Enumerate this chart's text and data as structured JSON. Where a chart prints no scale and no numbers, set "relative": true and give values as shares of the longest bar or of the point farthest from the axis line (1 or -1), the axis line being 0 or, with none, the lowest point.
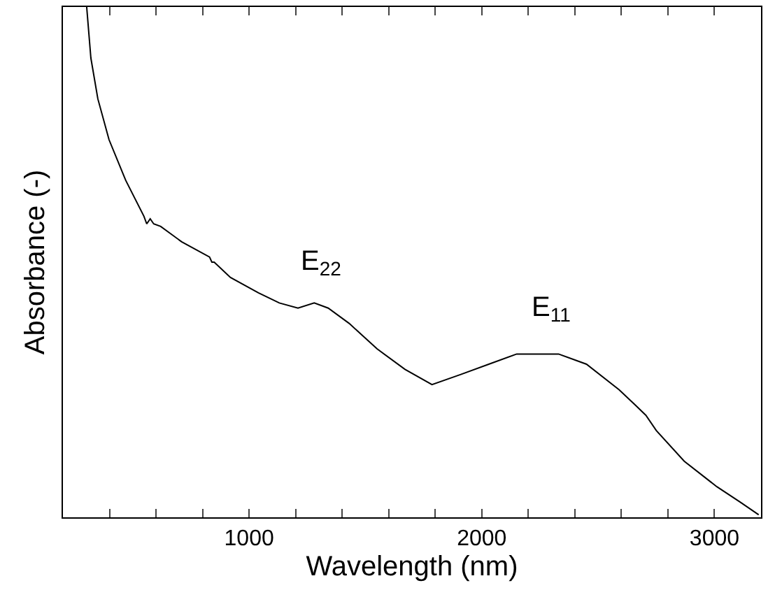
{
  "chart_data": {
    "type": "line",
    "xlabel": "Wavelength (nm)",
    "ylabel": "Absorbance (-)",
    "relative": true,
    "xlim": [
      200,
      3200
    ],
    "xticks": [
      {
        "value": 400,
        "label": null
      },
      {
        "value": 600,
        "label": null
      },
      {
        "value": 800,
        "label": null
      },
      1000,
      {
        "value": 1200,
        "label": null
      },
      {
        "value": 1400,
        "label": null
      },
      {
        "value": 1600,
        "label": null
      },
      {
        "value": 1800,
        "label": null
      },
      2000,
      {
        "value": 2200,
        "label": null
      },
      {
        "value": 2400,
        "label": null
      },
      {
        "value": 2600,
        "label": null
      },
      {
        "value": 2800,
        "label": null
      },
      3000
    ],
    "series": [
      {
        "color": "#000000",
        "x": [
          302,
          320,
          350,
          398,
          470,
          548,
          560,
          575,
          590,
          620,
          710,
          830,
          840,
          850,
          920,
          1040,
          1130,
          1210,
          1280,
          1340,
          1430,
          1550,
          1670,
          1786,
          1910,
          2030,
          2150,
          2270,
          2330,
          2450,
          2590,
          2660,
          2705,
          2750,
          2870,
          3010,
          3110,
          3190
        ],
        "values": [
          1.0,
          0.9,
          0.82,
          0.74,
          0.66,
          0.59,
          0.575,
          0.585,
          0.575,
          0.57,
          0.54,
          0.51,
          0.5,
          0.5,
          0.47,
          0.44,
          0.42,
          0.41,
          0.42,
          0.41,
          0.38,
          0.33,
          0.29,
          0.26,
          0.28,
          0.3,
          0.32,
          0.32,
          0.32,
          0.3,
          0.25,
          0.22,
          0.2,
          0.17,
          0.11,
          0.06,
          0.03,
          0.005
        ]
      }
    ],
    "annotations": [
      "E$_{22}$",
      "E$_{11}$"
    ],
    "marker": "none",
    "line_style": "solid"
  }
}
